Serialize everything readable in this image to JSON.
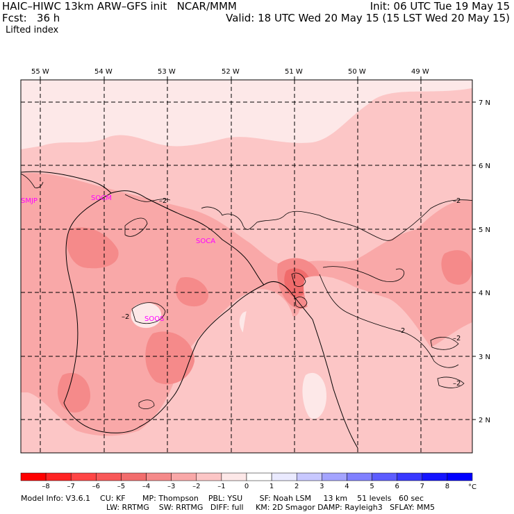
{
  "header": {
    "title_left": "HAIC–HIWC 13km ARW–GFS init   NCAR/MMM",
    "init": "Init: 06 UTC Tue 19 May 15",
    "fcst": "Fcst:   36 h",
    "valid": "Valid: 18 UTC Wed 20 May 15 (15 LST Wed 20 May 15)",
    "field": "Lifted index"
  },
  "map": {
    "longitude_labels": [
      "55 W",
      "54 W",
      "53 W",
      "52 W",
      "51 W",
      "50 W",
      "49 W"
    ],
    "latitude_labels": [
      "7 N",
      "6 N",
      "5 N",
      "4 N",
      "3 N",
      "2 N"
    ],
    "stations": [
      "SMJP",
      "SOCM",
      "SOCA",
      "SOOS"
    ],
    "contour_label": "–2",
    "colors": {
      "pale": "#fde8e8",
      "light": "#fcc6c6",
      "medium": "#f9a8a8",
      "strong": "#f58a8a",
      "deep": "#f06b6b"
    }
  },
  "colorbar": {
    "labels": [
      "–8",
      "–7",
      "–6",
      "–5",
      "–4",
      "–3",
      "–2",
      "–1",
      "0",
      "1",
      "2",
      "3",
      "4",
      "5",
      "6",
      "7",
      "8"
    ],
    "unit": "°C",
    "colors": [
      "#ff0000",
      "#ff2323",
      "#ff4545",
      "#f85858",
      "#f26d6d",
      "#f58a8a",
      "#f9a8a8",
      "#fcc6c6",
      "#fde8e8",
      "#ffffff",
      "#eaeaff",
      "#c8c8ff",
      "#a4a4ff",
      "#8080ff",
      "#5c5cff",
      "#3838ff",
      "#1414ff",
      "#0000ff"
    ]
  },
  "footer": {
    "line1": "Model Info: V3.6.1    CU: KF       MP: Thompson    PBL: YSU       SF: Noah LSM     13 km    51 levels   60 sec",
    "line2": "LW: RRTMG    SW: RRTMG   DIFF: full     KM: 2D Smagor DAMP: Rayleigh3   SFLAY: MM5"
  }
}
